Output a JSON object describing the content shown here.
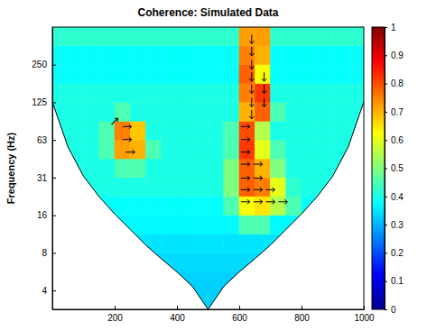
{
  "chart_data": {
    "type": "heatmap",
    "title": "Coherence: Simulated Data",
    "y_label": "Frequency (Hz)",
    "log": "y",
    "xlim": [
      0,
      1000
    ],
    "xticks": [
      200,
      400,
      600,
      800,
      1000
    ],
    "ylim": [
      2.76,
      500
    ],
    "yticks": [
      {
        "value": 3.90625,
        "label": "4"
      },
      {
        "value": 7.8125,
        "label": "8"
      },
      {
        "value": 15.625,
        "label": "16"
      },
      {
        "value": 31.25,
        "label": "31"
      },
      {
        "value": 62.5,
        "label": "63"
      },
      125,
      250
    ],
    "x_bins": [
      0,
      50,
      100,
      150,
      200,
      250,
      300,
      350,
      400,
      450,
      500,
      550,
      600,
      650,
      700,
      750,
      800,
      850,
      900,
      950,
      1000
    ],
    "y_bins": [
      2.76,
      3.91,
      5.52,
      7.81,
      11.05,
      15.63,
      22.1,
      31.25,
      44.19,
      62.5,
      88.39,
      125,
      176.78,
      250,
      353.55,
      500
    ],
    "cells": [
      [
        0.33,
        0.33,
        0.33,
        0.33,
        0.33,
        0.33,
        0.33,
        0.33,
        0.33,
        0.33,
        0.33,
        0.33,
        0.33,
        0.33,
        0.33,
        0.33,
        0.33,
        0.33,
        0.33,
        0.33
      ],
      [
        0.33,
        0.33,
        0.33,
        0.33,
        0.33,
        0.33,
        0.33,
        0.33,
        0.33,
        0.33,
        0.33,
        0.33,
        0.33,
        0.33,
        0.33,
        0.33,
        0.33,
        0.33,
        0.33,
        0.33
      ],
      [
        0.34,
        0.34,
        0.34,
        0.34,
        0.34,
        0.34,
        0.34,
        0.34,
        0.34,
        0.34,
        0.34,
        0.34,
        0.34,
        0.34,
        0.34,
        0.34,
        0.34,
        0.34,
        0.34,
        0.34
      ],
      [
        0.35,
        0.35,
        0.35,
        0.35,
        0.35,
        0.35,
        0.35,
        0.35,
        0.35,
        0.35,
        0.35,
        0.35,
        0.35,
        0.35,
        0.35,
        0.35,
        0.35,
        0.35,
        0.35,
        0.35
      ],
      [
        0.37,
        0.37,
        0.37,
        0.37,
        0.37,
        0.37,
        0.37,
        0.37,
        0.37,
        0.37,
        0.37,
        0.37,
        0.45,
        0.45,
        0.37,
        0.37,
        0.37,
        0.37,
        0.37,
        0.37
      ],
      [
        0.38,
        0.38,
        0.38,
        0.38,
        0.38,
        0.38,
        0.38,
        0.38,
        0.38,
        0.38,
        0.38,
        0.45,
        0.62,
        0.65,
        0.55,
        0.45,
        0.38,
        0.38,
        0.38,
        0.38
      ],
      [
        0.4,
        0.4,
        0.4,
        0.4,
        0.4,
        0.4,
        0.4,
        0.4,
        0.4,
        0.4,
        0.4,
        0.5,
        0.78,
        0.75,
        0.6,
        0.42,
        0.4,
        0.4,
        0.4,
        0.4
      ],
      [
        0.4,
        0.4,
        0.4,
        0.4,
        0.45,
        0.45,
        0.4,
        0.4,
        0.4,
        0.4,
        0.4,
        0.5,
        0.78,
        0.7,
        0.5,
        0.4,
        0.4,
        0.4,
        0.4,
        0.4
      ],
      [
        0.4,
        0.4,
        0.4,
        0.45,
        0.72,
        0.7,
        0.45,
        0.4,
        0.4,
        0.4,
        0.4,
        0.45,
        0.82,
        0.6,
        0.45,
        0.4,
        0.4,
        0.4,
        0.4,
        0.4
      ],
      [
        0.4,
        0.4,
        0.4,
        0.45,
        0.75,
        0.68,
        0.4,
        0.4,
        0.4,
        0.4,
        0.4,
        0.45,
        0.8,
        0.55,
        0.4,
        0.4,
        0.4,
        0.4,
        0.4,
        0.4
      ],
      [
        0.4,
        0.4,
        0.4,
        0.4,
        0.45,
        0.4,
        0.4,
        0.4,
        0.4,
        0.4,
        0.4,
        0.4,
        0.7,
        0.78,
        0.45,
        0.4,
        0.4,
        0.4,
        0.4,
        0.4
      ],
      [
        0.4,
        0.4,
        0.4,
        0.4,
        0.4,
        0.4,
        0.4,
        0.4,
        0.4,
        0.4,
        0.4,
        0.4,
        0.75,
        0.82,
        0.4,
        0.4,
        0.4,
        0.4,
        0.4,
        0.4
      ],
      [
        0.38,
        0.38,
        0.38,
        0.38,
        0.38,
        0.38,
        0.38,
        0.38,
        0.38,
        0.38,
        0.38,
        0.38,
        0.78,
        0.62,
        0.38,
        0.38,
        0.38,
        0.38,
        0.38,
        0.38
      ],
      [
        0.38,
        0.38,
        0.38,
        0.38,
        0.38,
        0.38,
        0.38,
        0.38,
        0.38,
        0.38,
        0.38,
        0.38,
        0.75,
        0.7,
        0.38,
        0.38,
        0.38,
        0.38,
        0.38,
        0.38
      ],
      [
        0.42,
        0.42,
        0.42,
        0.42,
        0.42,
        0.42,
        0.42,
        0.42,
        0.42,
        0.42,
        0.42,
        0.42,
        0.72,
        0.72,
        0.42,
        0.42,
        0.42,
        0.42,
        0.42,
        0.42
      ]
    ],
    "colorbar": {
      "range": [
        0,
        1
      ],
      "ticks": [
        0,
        0.1,
        0.2,
        0.3,
        0.4,
        0.5,
        0.6,
        0.7,
        0.8,
        0.9,
        1
      ]
    },
    "cone_of_influence": {
      "x": [
        0,
        50,
        100,
        150,
        200,
        250,
        300,
        350,
        400,
        450,
        500,
        550,
        600,
        650,
        700,
        750,
        800,
        850,
        900,
        950,
        1000
      ],
      "frequency": [
        126,
        55,
        32,
        22,
        16,
        12,
        9,
        7,
        5.5,
        4.2,
        2.76,
        4.2,
        5.5,
        7,
        9,
        12,
        16,
        22,
        32,
        55,
        126
      ]
    },
    "arrows": [
      {
        "x": 240,
        "frequency": 80,
        "angle": 0
      },
      {
        "x": 240,
        "frequency": 63,
        "angle": 0
      },
      {
        "x": 250,
        "frequency": 50,
        "angle": 0
      },
      {
        "x": 200,
        "frequency": 88,
        "angle": 45
      },
      {
        "x": 620,
        "frequency": 20,
        "angle": 0
      },
      {
        "x": 620,
        "frequency": 25,
        "angle": 0
      },
      {
        "x": 620,
        "frequency": 31,
        "angle": 0
      },
      {
        "x": 620,
        "frequency": 40,
        "angle": 0
      },
      {
        "x": 620,
        "frequency": 50,
        "angle": 0
      },
      {
        "x": 620,
        "frequency": 63,
        "angle": 0
      },
      {
        "x": 620,
        "frequency": 80,
        "angle": 0
      },
      {
        "x": 660,
        "frequency": 20,
        "angle": 0
      },
      {
        "x": 660,
        "frequency": 25,
        "angle": 0
      },
      {
        "x": 660,
        "frequency": 31,
        "angle": 0
      },
      {
        "x": 660,
        "frequency": 40,
        "angle": 0
      },
      {
        "x": 700,
        "frequency": 20,
        "angle": 0
      },
      {
        "x": 700,
        "frequency": 25,
        "angle": 0
      },
      {
        "x": 740,
        "frequency": 20,
        "angle": 0
      },
      {
        "x": 640,
        "frequency": 100,
        "angle": -90
      },
      {
        "x": 640,
        "frequency": 125,
        "angle": -90
      },
      {
        "x": 640,
        "frequency": 160,
        "angle": -90
      },
      {
        "x": 640,
        "frequency": 200,
        "angle": -90
      },
      {
        "x": 640,
        "frequency": 250,
        "angle": -90
      },
      {
        "x": 640,
        "frequency": 320,
        "angle": -90
      },
      {
        "x": 640,
        "frequency": 400,
        "angle": -90
      },
      {
        "x": 680,
        "frequency": 125,
        "angle": -90
      },
      {
        "x": 680,
        "frequency": 160,
        "angle": -90
      },
      {
        "x": 680,
        "frequency": 200,
        "angle": -90
      }
    ]
  }
}
